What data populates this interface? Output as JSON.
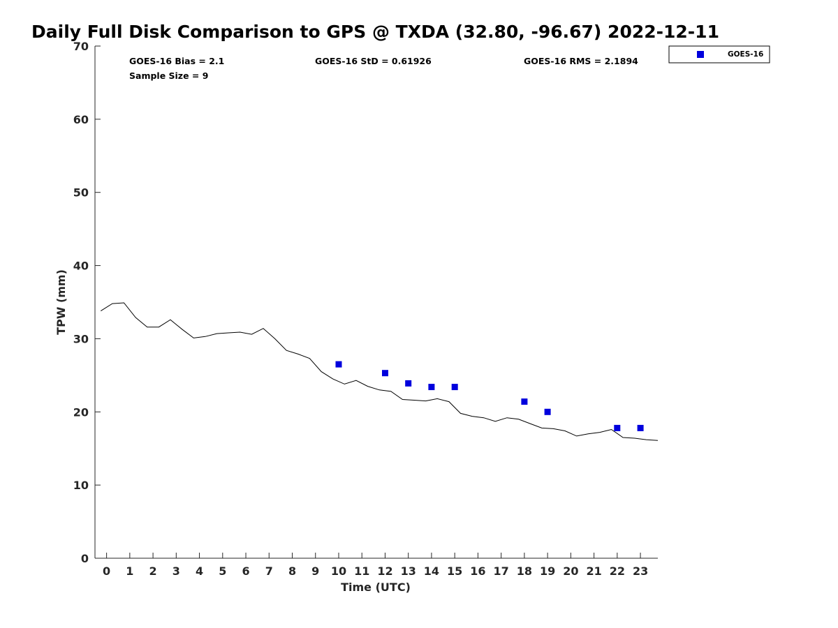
{
  "chart_data": {
    "type": "line",
    "title": "Daily Full Disk Comparison to GPS @ TXDA (32.80, -96.67) 2022-12-11",
    "xlabel": "Time (UTC)",
    "ylabel": "TPW (mm)",
    "xlim": [
      -0.5,
      23.75
    ],
    "ylim": [
      0,
      70
    ],
    "x_ticks": [
      0,
      1,
      2,
      3,
      4,
      5,
      6,
      7,
      8,
      9,
      10,
      11,
      12,
      13,
      14,
      15,
      16,
      17,
      18,
      19,
      20,
      21,
      22,
      23
    ],
    "y_ticks": [
      0,
      10,
      20,
      30,
      40,
      50,
      60,
      70
    ],
    "grid": false,
    "legend": {
      "placement": "top-right outside",
      "entries": [
        "GOES-16"
      ]
    },
    "stats": {
      "bias": "GOES-16 Bias = 2.1",
      "std": "GOES-16 StD = 0.61926",
      "rms": "GOES-16 RMS = 2.1894",
      "sample": "Sample Size = 9"
    },
    "series": [
      {
        "style": "line",
        "color": "#000000",
        "x": [
          -0.25,
          0.25,
          0.75,
          1.25,
          1.75,
          2.25,
          2.75,
          3.25,
          3.75,
          4.25,
          4.75,
          5.25,
          5.75,
          6.25,
          6.75,
          7.25,
          7.75,
          8.25,
          8.75,
          9.25,
          9.75,
          10.25,
          10.75,
          11.25,
          11.75,
          12.25,
          12.75,
          13.25,
          13.75,
          14.25,
          14.75,
          15.25,
          15.75,
          16.25,
          16.75,
          17.25,
          17.75,
          18.25,
          18.75,
          19.25,
          19.75,
          20.25,
          20.75,
          21.25,
          21.75,
          22.25,
          22.75,
          23.25,
          23.75
        ],
        "y": [
          33.8,
          34.8,
          34.9,
          32.9,
          31.6,
          31.6,
          32.6,
          31.3,
          30.1,
          30.3,
          30.7,
          30.8,
          30.9,
          30.6,
          31.4,
          30.0,
          28.4,
          27.9,
          27.3,
          25.5,
          24.5,
          23.8,
          24.3,
          23.5,
          23.0,
          22.8,
          21.7,
          21.6,
          21.5,
          21.8,
          21.4,
          19.8,
          19.4,
          19.2,
          18.7,
          19.2,
          19.0,
          18.4,
          17.8,
          17.7,
          17.4,
          16.7,
          17.0,
          17.2,
          17.6,
          16.5,
          16.4,
          16.2,
          16.1
        ]
      },
      {
        "name": "GOES-16",
        "style": "square-marker",
        "color": "#0000dd",
        "x": [
          10,
          12,
          13,
          14,
          15,
          18,
          19,
          22,
          23
        ],
        "y": [
          26.5,
          25.3,
          23.9,
          23.4,
          23.4,
          21.4,
          20.0,
          17.8,
          17.8
        ]
      }
    ]
  }
}
